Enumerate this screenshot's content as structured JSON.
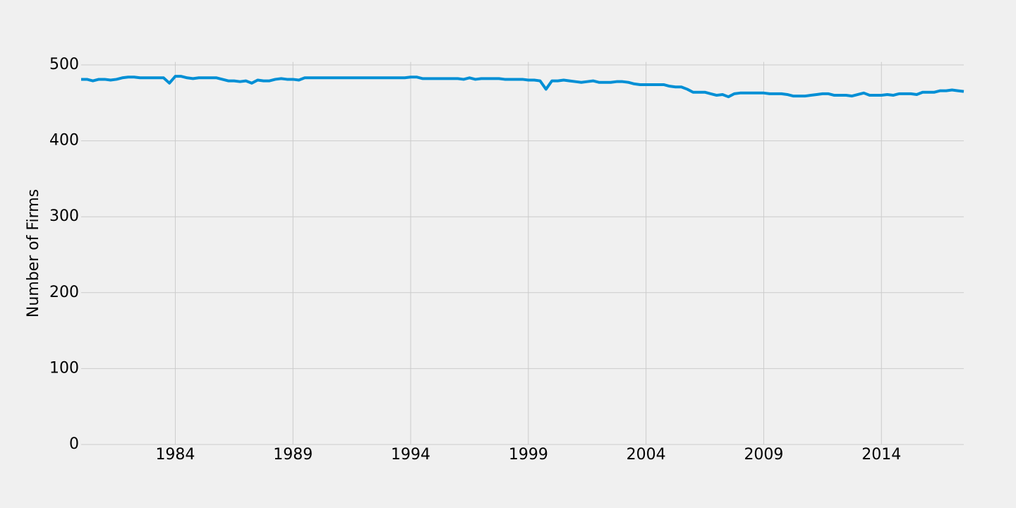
{
  "chart_data": {
    "type": "line",
    "y_label": "Number of Firms",
    "x": [
      1980,
      1980.25,
      1980.5,
      1980.75,
      1981,
      1981.25,
      1981.5,
      1981.75,
      1982,
      1982.25,
      1982.5,
      1982.75,
      1983,
      1983.25,
      1983.5,
      1983.75,
      1984,
      1984.25,
      1984.5,
      1984.75,
      1985,
      1985.25,
      1985.5,
      1985.75,
      1986,
      1986.25,
      1986.5,
      1986.75,
      1987,
      1987.25,
      1987.5,
      1987.75,
      1988,
      1988.25,
      1988.5,
      1988.75,
      1989,
      1989.25,
      1989.5,
      1989.75,
      1990,
      1990.25,
      1990.5,
      1990.75,
      1991,
      1991.25,
      1991.5,
      1991.75,
      1992,
      1992.25,
      1992.5,
      1992.75,
      1993,
      1993.25,
      1993.5,
      1993.75,
      1994,
      1994.25,
      1994.5,
      1994.75,
      1995,
      1995.25,
      1995.5,
      1995.75,
      1996,
      1996.25,
      1996.5,
      1996.75,
      1997,
      1997.25,
      1997.5,
      1997.75,
      1998,
      1998.25,
      1998.5,
      1998.75,
      1999,
      1999.25,
      1999.5,
      1999.75,
      2000,
      2000.25,
      2000.5,
      2000.75,
      2001,
      2001.25,
      2001.5,
      2001.75,
      2002,
      2002.25,
      2002.5,
      2002.75,
      2003,
      2003.25,
      2003.5,
      2003.75,
      2004,
      2004.25,
      2004.5,
      2004.75,
      2005,
      2005.25,
      2005.5,
      2005.75,
      2006,
      2006.25,
      2006.5,
      2006.75,
      2007,
      2007.25,
      2007.5,
      2007.75,
      2008,
      2008.25,
      2008.5,
      2008.75,
      2009,
      2009.25,
      2009.5,
      2009.75,
      2010,
      2010.25,
      2010.5,
      2010.75,
      2011,
      2011.25,
      2011.5,
      2011.75,
      2012,
      2012.25,
      2012.5,
      2012.75,
      2013,
      2013.25,
      2013.5,
      2013.75,
      2014,
      2014.25,
      2014.5,
      2014.75,
      2015,
      2015.25,
      2015.5,
      2015.75,
      2016,
      2016.25,
      2016.5,
      2016.75,
      2017,
      2017.25,
      2017.5
    ],
    "series": [
      {
        "color": "#008fd5",
        "values": [
          481,
          481,
          479,
          481,
          481,
          480,
          481,
          483,
          484,
          484,
          483,
          483,
          483,
          483,
          483,
          476,
          485,
          485,
          483,
          482,
          483,
          483,
          483,
          483,
          481,
          479,
          479,
          478,
          479,
          476,
          480,
          479,
          479,
          481,
          482,
          481,
          481,
          480,
          483,
          483,
          483,
          483,
          483,
          483,
          483,
          483,
          483,
          483,
          483,
          483,
          483,
          483,
          483,
          483,
          483,
          483,
          484,
          484,
          482,
          482,
          482,
          482,
          482,
          482,
          482,
          481,
          483,
          481,
          482,
          482,
          482,
          482,
          481,
          481,
          481,
          481,
          480,
          480,
          479,
          468,
          479,
          479,
          480,
          479,
          478,
          477,
          478,
          479,
          477,
          477,
          477,
          478,
          478,
          477,
          475,
          474,
          474,
          474,
          474,
          474,
          472,
          471,
          471,
          468,
          464,
          464,
          464,
          462,
          460,
          461,
          458,
          462,
          463,
          463,
          463,
          463,
          463,
          462,
          462,
          462,
          461,
          459,
          459,
          459,
          460,
          461,
          462,
          462,
          460,
          460,
          460,
          459,
          461,
          463,
          460,
          460,
          460,
          461,
          460,
          462,
          462,
          462,
          461,
          464,
          464,
          464,
          466,
          466,
          467,
          466,
          465
        ]
      }
    ],
    "xlim": [
      1980,
      2017.5
    ],
    "xticks": [
      1984,
      1989,
      1994,
      1999,
      2004,
      2009,
      2014
    ],
    "ylim": [
      0,
      504
    ],
    "yticks": [
      0,
      100,
      200,
      300,
      400,
      500
    ],
    "grid": true
  }
}
